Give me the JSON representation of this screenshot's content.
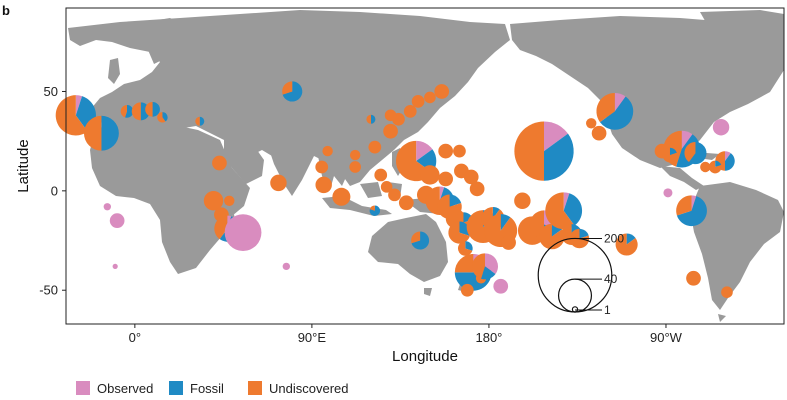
{
  "panel_label": "b",
  "axes": {
    "xlabel": "Longitude",
    "ylabel": "Latitude",
    "x_ticks": [
      {
        "lon": 0,
        "label": "0°"
      },
      {
        "lon": 90,
        "label": "90°E"
      },
      {
        "lon": 180,
        "label": "180°"
      },
      {
        "lon": 270,
        "label": "90°W"
      }
    ],
    "y_ticks": [
      {
        "lat": 50,
        "label": "50"
      },
      {
        "lat": 0,
        "label": "0"
      },
      {
        "lat": -50,
        "label": "-50"
      }
    ],
    "lon_range": [
      -35,
      330
    ],
    "lat_range": [
      -67,
      92
    ]
  },
  "colors": {
    "observed": "#d98cbf",
    "fossil": "#1f8ac4",
    "undiscovered": "#ee7a2f",
    "land": "#9a9a9a"
  },
  "legend": [
    {
      "key": "observed",
      "label": "Observed"
    },
    {
      "key": "fossil",
      "label": "Fossil"
    },
    {
      "key": "undiscovered",
      "label": "Undiscovered"
    }
  ],
  "size_legend": [
    {
      "value": 200,
      "label": "200"
    },
    {
      "value": 40,
      "label": "40"
    },
    {
      "value": 1,
      "label": "1"
    }
  ],
  "islands": [
    {
      "lon": -30,
      "lat": 38,
      "total": 60,
      "observed": 0.05,
      "fossil": 0.35,
      "undiscovered": 0.6
    },
    {
      "lon": -17,
      "lat": 29,
      "total": 45,
      "observed": 0.0,
      "fossil": 0.5,
      "undiscovered": 0.5
    },
    {
      "lon": -4,
      "lat": 40,
      "total": 6,
      "observed": 0.0,
      "fossil": 0.55,
      "undiscovered": 0.45
    },
    {
      "lon": 3,
      "lat": 40,
      "total": 12,
      "observed": 0.0,
      "fossil": 0.5,
      "undiscovered": 0.5
    },
    {
      "lon": 9,
      "lat": 41,
      "total": 8,
      "observed": 0.0,
      "fossil": 0.5,
      "undiscovered": 0.5
    },
    {
      "lon": 14,
      "lat": 37,
      "total": 4,
      "observed": 0.0,
      "fossil": 0.4,
      "undiscovered": 0.6
    },
    {
      "lon": 33,
      "lat": 35,
      "total": 3,
      "observed": 0.0,
      "fossil": 0.5,
      "undiscovered": 0.5
    },
    {
      "lon": 80,
      "lat": 50,
      "total": 15,
      "observed": 0.0,
      "fossil": 0.7,
      "undiscovered": 0.3
    },
    {
      "lon": 43,
      "lat": 14,
      "total": 8,
      "observed": 0.0,
      "fossil": 0.0,
      "undiscovered": 1.0
    },
    {
      "lon": 73,
      "lat": 4,
      "total": 10,
      "observed": 0.0,
      "fossil": 0.0,
      "undiscovered": 1.0
    },
    {
      "lon": 40,
      "lat": -5,
      "total": 14,
      "observed": 0.0,
      "fossil": 0.0,
      "undiscovered": 1.0
    },
    {
      "lon": 44,
      "lat": -12,
      "total": 8,
      "observed": 0.0,
      "fossil": 0.0,
      "undiscovered": 1.0
    },
    {
      "lon": 47,
      "lat": -19,
      "total": 25,
      "observed": 0.05,
      "fossil": 0.55,
      "undiscovered": 0.4
    },
    {
      "lon": 55,
      "lat": -21,
      "total": 50,
      "observed": 1.0,
      "fossil": 0.0,
      "undiscovered": 0.0
    },
    {
      "lon": 48,
      "lat": -5,
      "total": 4,
      "observed": 0.0,
      "fossil": 0.0,
      "undiscovered": 1.0
    },
    {
      "lon": -9,
      "lat": -15,
      "total": 8,
      "observed": 1.0,
      "fossil": 0.0,
      "undiscovered": 0.0
    },
    {
      "lon": -14,
      "lat": -8,
      "total": 2,
      "observed": 1.0,
      "fossil": 0.0,
      "undiscovered": 0.0
    },
    {
      "lon": -10,
      "lat": -38,
      "total": 1,
      "observed": 1.0,
      "fossil": 0.0,
      "undiscovered": 0.0
    },
    {
      "lon": 77,
      "lat": -38,
      "total": 2,
      "observed": 1.0,
      "fossil": 0.0,
      "undiscovered": 0.0
    },
    {
      "lon": 95,
      "lat": 12,
      "total": 6,
      "observed": 0.0,
      "fossil": 0.0,
      "undiscovered": 1.0
    },
    {
      "lon": 96,
      "lat": 3,
      "total": 10,
      "observed": 0.0,
      "fossil": 0.0,
      "undiscovered": 1.0
    },
    {
      "lon": 105,
      "lat": -3,
      "total": 12,
      "observed": 0.0,
      "fossil": 0.0,
      "undiscovered": 1.0
    },
    {
      "lon": 98,
      "lat": 20,
      "total": 4,
      "observed": 0.0,
      "fossil": 0.0,
      "undiscovered": 1.0
    },
    {
      "lon": 112,
      "lat": 12,
      "total": 5,
      "observed": 0.0,
      "fossil": 0.0,
      "undiscovered": 1.0
    },
    {
      "lon": 112,
      "lat": 18,
      "total": 4,
      "observed": 0.0,
      "fossil": 0.0,
      "undiscovered": 1.0
    },
    {
      "lon": 122,
      "lat": 22,
      "total": 6,
      "observed": 0.0,
      "fossil": 0.0,
      "undiscovered": 1.0
    },
    {
      "lon": 125,
      "lat": 8,
      "total": 6,
      "observed": 0.0,
      "fossil": 0.0,
      "undiscovered": 1.0
    },
    {
      "lon": 128,
      "lat": 2,
      "total": 5,
      "observed": 0.0,
      "fossil": 0.0,
      "undiscovered": 1.0
    },
    {
      "lon": 132,
      "lat": -2,
      "total": 6,
      "observed": 0.0,
      "fossil": 0.0,
      "undiscovered": 1.0
    },
    {
      "lon": 138,
      "lat": -6,
      "total": 8,
      "observed": 0.0,
      "fossil": 0.0,
      "undiscovered": 1.0
    },
    {
      "lon": 122,
      "lat": -10,
      "total": 4,
      "observed": 0.0,
      "fossil": 0.8,
      "undiscovered": 0.2
    },
    {
      "lon": 130,
      "lat": 30,
      "total": 8,
      "observed": 0.0,
      "fossil": 0.0,
      "undiscovered": 1.0
    },
    {
      "lon": 134,
      "lat": 36,
      "total": 6,
      "observed": 0.0,
      "fossil": 0.0,
      "undiscovered": 1.0
    },
    {
      "lon": 130,
      "lat": 38,
      "total": 5,
      "observed": 0.0,
      "fossil": 0.0,
      "undiscovered": 1.0
    },
    {
      "lon": 140,
      "lat": 40,
      "total": 6,
      "observed": 0.0,
      "fossil": 0.0,
      "undiscovered": 1.0
    },
    {
      "lon": 144,
      "lat": 45,
      "total": 6,
      "observed": 0.0,
      "fossil": 0.0,
      "undiscovered": 1.0
    },
    {
      "lon": 150,
      "lat": 47,
      "total": 5,
      "observed": 0.0,
      "fossil": 0.0,
      "undiscovered": 1.0
    },
    {
      "lon": 156,
      "lat": 50,
      "total": 8,
      "observed": 0.0,
      "fossil": 0.0,
      "undiscovered": 1.0
    },
    {
      "lon": 143,
      "lat": 15,
      "total": 60,
      "observed": 0.15,
      "fossil": 0.2,
      "undiscovered": 0.65
    },
    {
      "lon": 150,
      "lat": 8,
      "total": 14,
      "observed": 0.0,
      "fossil": 0.0,
      "undiscovered": 1.0
    },
    {
      "lon": 158,
      "lat": 6,
      "total": 8,
      "observed": 0.0,
      "fossil": 0.0,
      "undiscovered": 1.0
    },
    {
      "lon": 166,
      "lat": 10,
      "total": 8,
      "observed": 0.0,
      "fossil": 0.0,
      "undiscovered": 1.0
    },
    {
      "lon": 171,
      "lat": 7,
      "total": 8,
      "observed": 0.0,
      "fossil": 0.0,
      "undiscovered": 1.0
    },
    {
      "lon": 174,
      "lat": 1,
      "total": 8,
      "observed": 0.0,
      "fossil": 0.0,
      "undiscovered": 1.0
    },
    {
      "lon": 158,
      "lat": 20,
      "total": 8,
      "observed": 0.0,
      "fossil": 0.0,
      "undiscovered": 1.0
    },
    {
      "lon": 165,
      "lat": 20,
      "total": 6,
      "observed": 0.0,
      "fossil": 0.0,
      "undiscovered": 1.0
    },
    {
      "lon": 148,
      "lat": -2,
      "total": 12,
      "observed": 0.0,
      "fossil": 0.0,
      "undiscovered": 1.0
    },
    {
      "lon": 155,
      "lat": -5,
      "total": 30,
      "observed": 0.05,
      "fossil": 0.2,
      "undiscovered": 0.75
    },
    {
      "lon": 160,
      "lat": -8,
      "total": 22,
      "observed": 0.0,
      "fossil": 0.2,
      "undiscovered": 0.8
    },
    {
      "lon": 163,
      "lat": -14,
      "total": 14,
      "observed": 0.0,
      "fossil": 0.0,
      "undiscovered": 1.0
    },
    {
      "lon": 167,
      "lat": -16,
      "total": 16,
      "observed": 0.0,
      "fossil": 0.2,
      "undiscovered": 0.8
    },
    {
      "lon": 165,
      "lat": -21,
      "total": 18,
      "observed": 0.0,
      "fossil": 0.3,
      "undiscovered": 0.7
    },
    {
      "lon": 168,
      "lat": -29,
      "total": 8,
      "observed": 0.0,
      "fossil": 0.3,
      "undiscovered": 0.7
    },
    {
      "lon": 172,
      "lat": -35,
      "total": 6,
      "observed": 0.0,
      "fossil": 0.0,
      "undiscovered": 1.0
    },
    {
      "lon": 172,
      "lat": -41,
      "total": 50,
      "observed": 0.1,
      "fossil": 0.65,
      "undiscovered": 0.25
    },
    {
      "lon": 169,
      "lat": -50,
      "total": 6,
      "observed": 0.0,
      "fossil": 0.0,
      "undiscovered": 1.0
    },
    {
      "lon": 176,
      "lat": -44,
      "total": 4,
      "observed": 0.0,
      "fossil": 0.0,
      "undiscovered": 1.0
    },
    {
      "lon": 178,
      "lat": -38,
      "total": 25,
      "observed": 0.35,
      "fossil": 0.2,
      "undiscovered": 0.45
    },
    {
      "lon": 177,
      "lat": -18,
      "total": 40,
      "observed": 0.0,
      "fossil": 0.25,
      "undiscovered": 0.75
    },
    {
      "lon": 182,
      "lat": -14,
      "total": 20,
      "observed": 0.0,
      "fossil": 0.1,
      "undiscovered": 0.9
    },
    {
      "lon": 186,
      "lat": -20,
      "total": 40,
      "observed": 0.0,
      "fossil": 0.1,
      "undiscovered": 0.9
    },
    {
      "lon": 190,
      "lat": -26,
      "total": 8,
      "observed": 0.0,
      "fossil": 0.0,
      "undiscovered": 1.0
    },
    {
      "lon": 186,
      "lat": -48,
      "total": 8,
      "observed": 1.0,
      "fossil": 0.0,
      "undiscovered": 0.0
    },
    {
      "lon": 197,
      "lat": -5,
      "total": 10,
      "observed": 0.0,
      "fossil": 0.0,
      "undiscovered": 1.0
    },
    {
      "lon": 202,
      "lat": -20,
      "total": 30,
      "observed": 0.0,
      "fossil": 0.25,
      "undiscovered": 0.75
    },
    {
      "lon": 208,
      "lat": -17,
      "total": 30,
      "observed": 0.3,
      "fossil": 0.2,
      "undiscovered": 0.5
    },
    {
      "lon": 212,
      "lat": -23,
      "total": 24,
      "observed": 0.0,
      "fossil": 0.15,
      "undiscovered": 0.85
    },
    {
      "lon": 218,
      "lat": -10,
      "total": 50,
      "observed": 0.05,
      "fossil": 0.35,
      "undiscovered": 0.6
    },
    {
      "lon": 222,
      "lat": -22,
      "total": 16,
      "observed": 0.0,
      "fossil": 0.2,
      "undiscovered": 0.8
    },
    {
      "lon": 226,
      "lat": -24,
      "total": 14,
      "observed": 0.0,
      "fossil": 0.2,
      "undiscovered": 0.8
    },
    {
      "lon": 208,
      "lat": 20,
      "total": 130,
      "observed": 0.15,
      "fossil": 0.35,
      "undiscovered": 0.5
    },
    {
      "lon": 250,
      "lat": -27,
      "total": 18,
      "observed": 0.0,
      "fossil": 0.15,
      "undiscovered": 0.85
    },
    {
      "lon": 244,
      "lat": 40,
      "total": 50,
      "observed": 0.1,
      "fossil": 0.55,
      "undiscovered": 0.35
    },
    {
      "lon": 236,
      "lat": 29,
      "total": 8,
      "observed": 0.0,
      "fossil": 0.0,
      "undiscovered": 1.0
    },
    {
      "lon": 232,
      "lat": 34,
      "total": 4,
      "observed": 0.0,
      "fossil": 0.0,
      "undiscovered": 1.0
    },
    {
      "lon": 268,
      "lat": 20,
      "total": 8,
      "observed": 0.0,
      "fossil": 0.0,
      "undiscovered": 1.0
    },
    {
      "lon": 278,
      "lat": 21,
      "total": 50,
      "observed": 0.1,
      "fossil": 0.45,
      "undiscovered": 0.45
    },
    {
      "lon": 272,
      "lat": 18,
      "total": 8,
      "observed": 0.0,
      "fossil": 0.2,
      "undiscovered": 0.8
    },
    {
      "lon": 285,
      "lat": 19,
      "total": 18,
      "observed": 0.0,
      "fossil": 0.6,
      "undiscovered": 0.4
    },
    {
      "lon": 298,
      "lat": 32,
      "total": 10,
      "observed": 1.0,
      "fossil": 0.0,
      "undiscovered": 0.0
    },
    {
      "lon": 300,
      "lat": 15,
      "total": 14,
      "observed": 0.1,
      "fossil": 0.4,
      "undiscovered": 0.5
    },
    {
      "lon": 295,
      "lat": 12,
      "total": 6,
      "observed": 0.0,
      "fossil": 0.2,
      "undiscovered": 0.8
    },
    {
      "lon": 290,
      "lat": 12,
      "total": 4,
      "observed": 0.0,
      "fossil": 0.0,
      "undiscovered": 1.0
    },
    {
      "lon": 271,
      "lat": -1,
      "total": 3,
      "observed": 1.0,
      "fossil": 0.0,
      "undiscovered": 0.0
    },
    {
      "lon": 283,
      "lat": -10,
      "total": 35,
      "observed": 0.05,
      "fossil": 0.65,
      "undiscovered": 0.3
    },
    {
      "lon": 284,
      "lat": -44,
      "total": 8,
      "observed": 0.0,
      "fossil": 0.0,
      "undiscovered": 1.0
    },
    {
      "lon": 301,
      "lat": -51,
      "total": 5,
      "observed": 0.0,
      "fossil": 0.0,
      "undiscovered": 1.0
    },
    {
      "lon": 145,
      "lat": -25,
      "total": 12,
      "observed": 0.0,
      "fossil": 0.7,
      "undiscovered": 0.3
    },
    {
      "lon": 120,
      "lat": 36,
      "total": 3,
      "observed": 0.0,
      "fossil": 0.5,
      "undiscovered": 0.5
    }
  ]
}
